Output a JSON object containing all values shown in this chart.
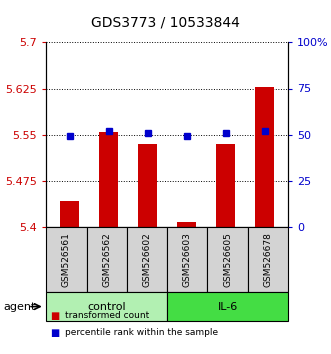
{
  "title": "GDS3773 / 10533844",
  "samples": [
    "GSM526561",
    "GSM526562",
    "GSM526602",
    "GSM526603",
    "GSM526605",
    "GSM526678"
  ],
  "red_values": [
    5.442,
    5.554,
    5.535,
    5.407,
    5.534,
    5.627
  ],
  "blue_values": [
    5.547,
    5.556,
    5.552,
    5.548,
    5.552,
    5.556
  ],
  "ylim": [
    5.4,
    5.7
  ],
  "yticks": [
    5.4,
    5.475,
    5.55,
    5.625,
    5.7
  ],
  "ytick_labels": [
    "5.4",
    "5.475",
    "5.55",
    "5.625",
    "5.7"
  ],
  "right_yticks": [
    0,
    25,
    50,
    75,
    100
  ],
  "right_ytick_labels": [
    "0",
    "25",
    "50",
    "75",
    "100%"
  ],
  "groups": [
    {
      "label": "control",
      "indices": [
        0,
        1,
        2
      ],
      "color": "#b2f0b2"
    },
    {
      "label": "IL-6",
      "indices": [
        3,
        4,
        5
      ],
      "color": "#44dd44"
    }
  ],
  "agent_label": "agent",
  "bar_color": "#cc0000",
  "dot_color": "#0000cc",
  "bar_width": 0.5,
  "base_value": 5.4,
  "legend_items": [
    {
      "label": "transformed count",
      "color": "#cc0000"
    },
    {
      "label": "percentile rank within the sample",
      "color": "#0000cc"
    }
  ]
}
